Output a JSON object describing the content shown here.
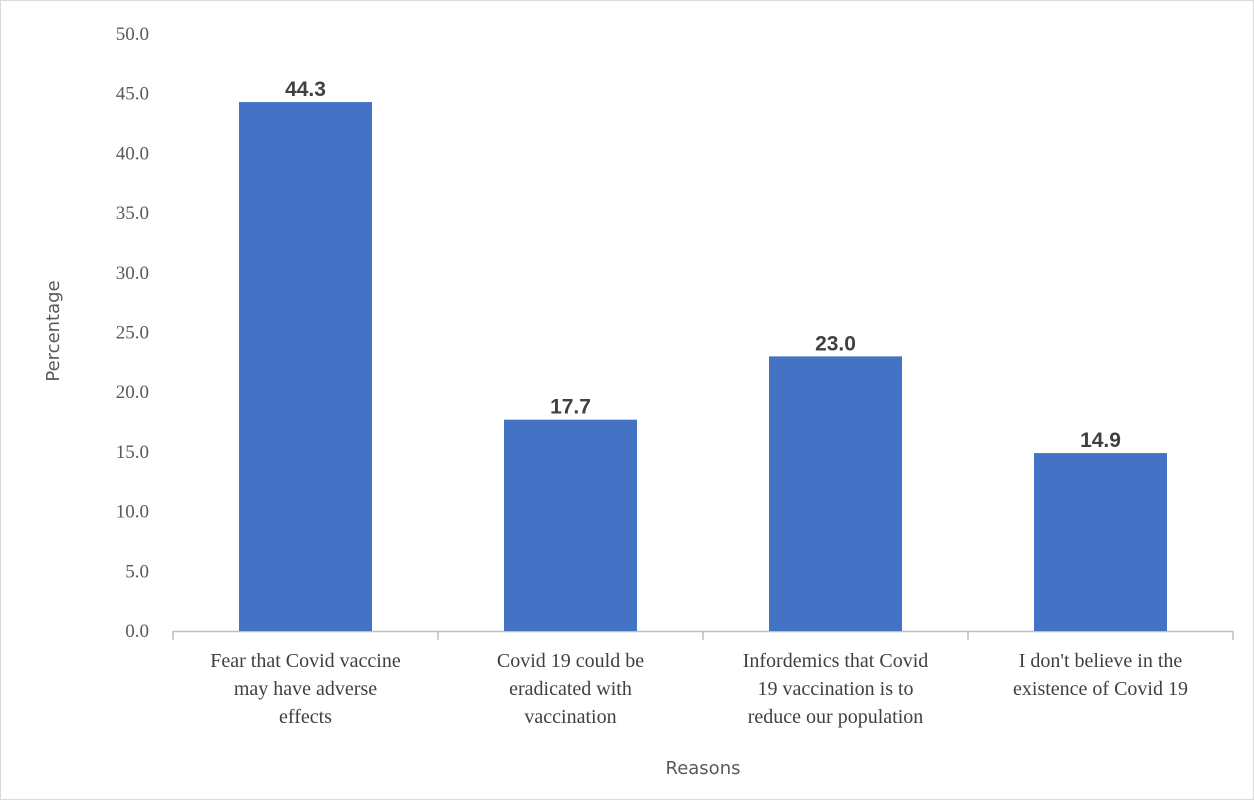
{
  "chart_data": {
    "type": "bar",
    "categories": [
      [
        "Fear that Covid vaccine",
        "may have adverse",
        "effects"
      ],
      [
        "Covid 19 could be",
        "eradicated with",
        "vaccination"
      ],
      [
        "Infordemics that Covid",
        "19 vaccination is to",
        "reduce our population"
      ],
      [
        "I don't believe in the",
        "existence of Covid 19"
      ]
    ],
    "values": [
      44.3,
      17.7,
      23.0,
      14.9
    ],
    "value_labels": [
      "44.3",
      "17.7",
      "23.0",
      "14.9"
    ],
    "yticks": [
      "0.0",
      "5.0",
      "10.0",
      "15.0",
      "20.0",
      "25.0",
      "30.0",
      "35.0",
      "40.0",
      "45.0",
      "50.0"
    ],
    "ylim": [
      0,
      50
    ],
    "xlabel": "Reasons",
    "ylabel": "Percentage",
    "grid": false,
    "colors": {
      "bar": "#4472c4",
      "axis": "#bfbfbf"
    }
  }
}
